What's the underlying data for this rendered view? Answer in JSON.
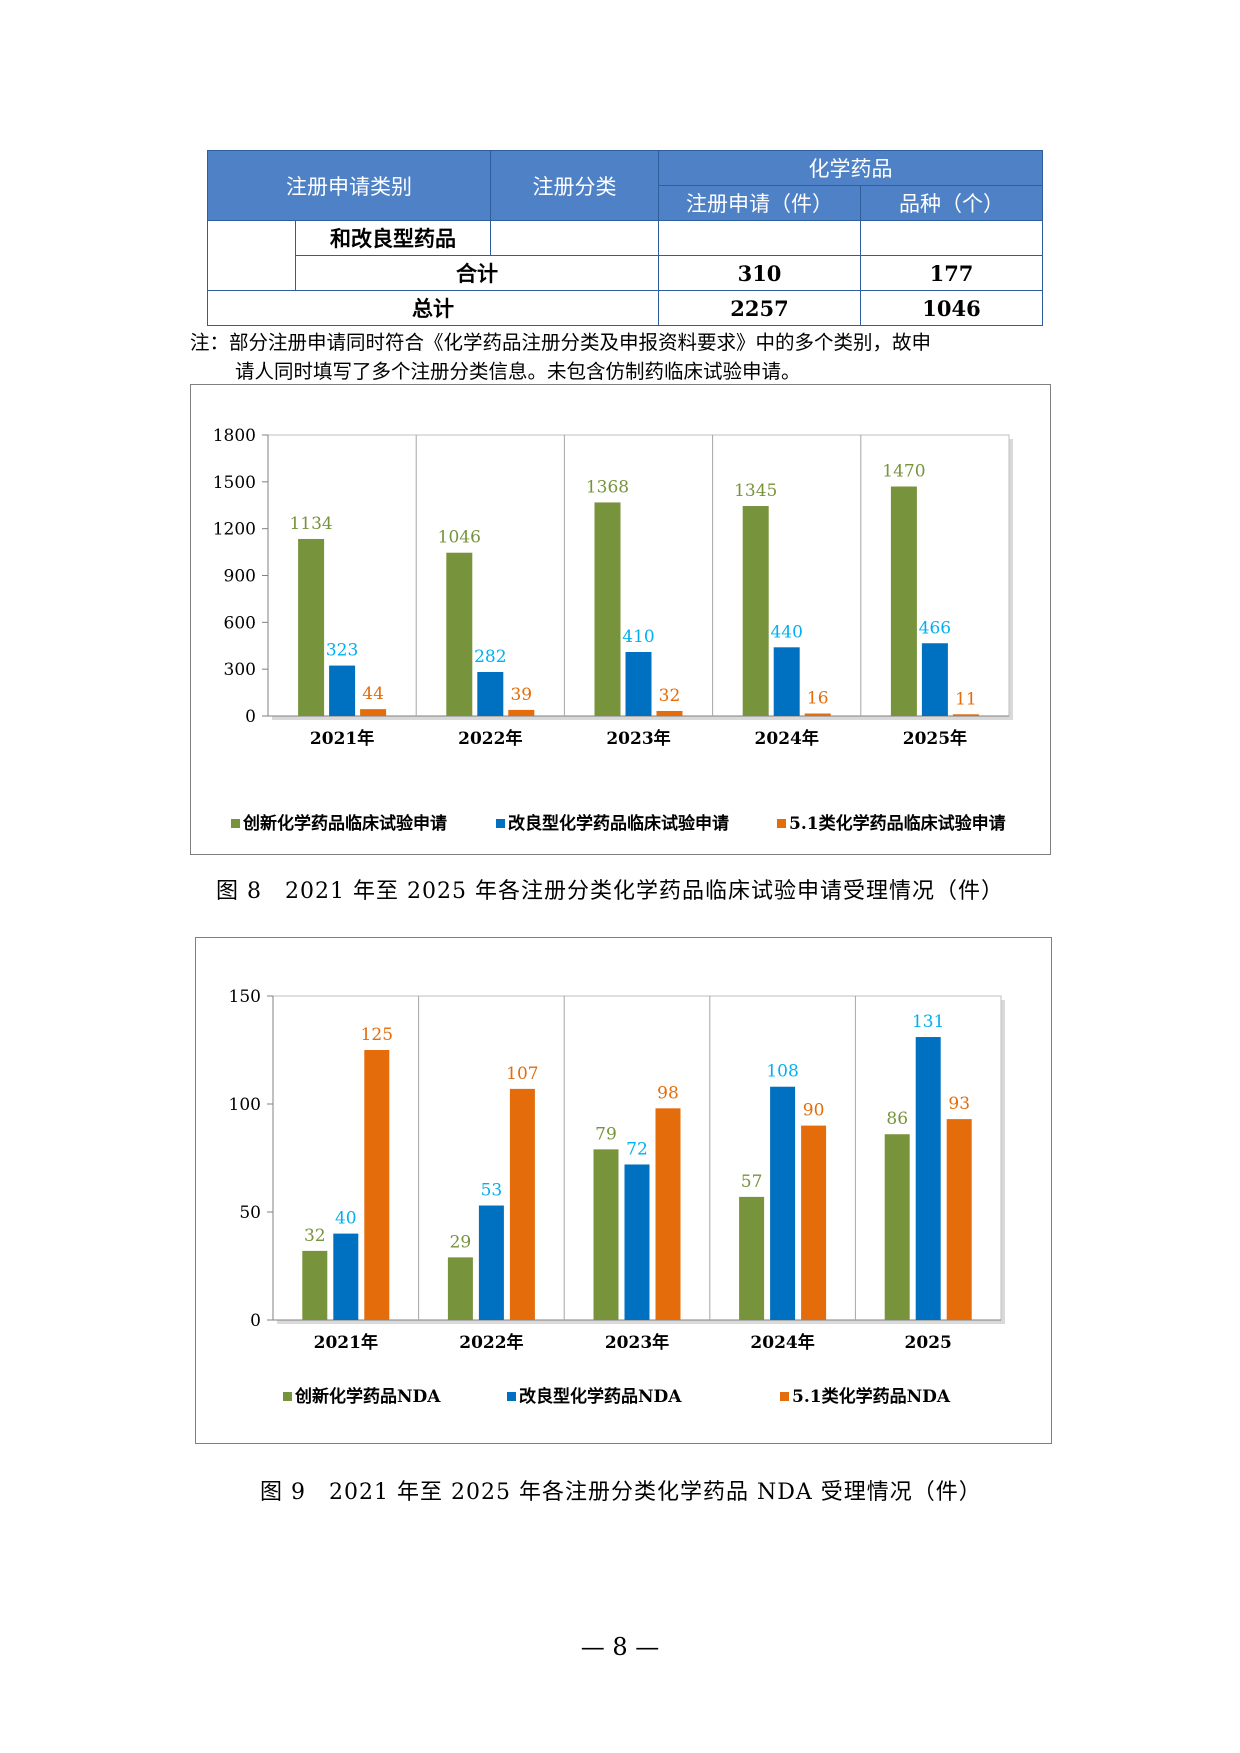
{
  "table": {
    "header": {
      "col1": "注册申请类别",
      "col2": "注册分类",
      "group": "化学药品",
      "sub1": "注册申请（件）",
      "sub2": "品种（个）"
    },
    "rows": [
      {
        "label": "和改良型药品",
        "apps": "",
        "varieties": ""
      },
      {
        "label": "合计",
        "apps": "310",
        "varieties": "177"
      },
      {
        "label": "总计",
        "apps": "2257",
        "varieties": "1046"
      }
    ]
  },
  "note": {
    "line1": "注：部分注册申请同时符合《化学药品注册分类及申报资料要求》中的多个类别，故申",
    "line2": "请人同时填写了多个注册分类信息。未包含仿制药临床试验申请。"
  },
  "chart_data": [
    {
      "type": "bar",
      "categories": [
        "2021年",
        "2022年",
        "2023年",
        "2024年",
        "2025年"
      ],
      "series": [
        {
          "name": "创新化学药品临床试验申请",
          "values": [
            1134,
            1046,
            1368,
            1345,
            1470
          ],
          "color": "#77933c"
        },
        {
          "name": "改良型化学药品临床试验申请",
          "values": [
            323,
            282,
            410,
            440,
            466
          ],
          "color": "#0070c0"
        },
        {
          "name": "5.1类化学药品临床试验申请",
          "values": [
            44,
            39,
            32,
            16,
            11
          ],
          "color": "#e46c0a"
        }
      ],
      "label_colors": [
        "#77933c",
        "#00b0f0",
        "#e46c0a"
      ],
      "yticks": [
        0,
        300,
        600,
        900,
        1200,
        1500,
        1800
      ],
      "ylim": [
        0,
        1800
      ],
      "grid": false,
      "legend": "bottom",
      "title": "",
      "xlabel": "",
      "ylabel": ""
    },
    {
      "type": "bar",
      "categories": [
        "2021年",
        "2022年",
        "2023年",
        "2024年",
        "2025"
      ],
      "series": [
        {
          "name": "创新化学药品NDA",
          "values": [
            32,
            29,
            79,
            57,
            86
          ],
          "color": "#77933c"
        },
        {
          "name": "改良型化学药品NDA",
          "values": [
            40,
            53,
            72,
            108,
            131
          ],
          "color": "#0070c0"
        },
        {
          "name": "5.1类化学药品NDA",
          "values": [
            125,
            107,
            98,
            90,
            93
          ],
          "color": "#e46c0a"
        }
      ],
      "label_colors": [
        "#77933c",
        "#00b0f0",
        "#e46c0a"
      ],
      "yticks": [
        0,
        50,
        100,
        150
      ],
      "ylim": [
        0,
        150
      ],
      "grid": false,
      "legend": "bottom",
      "title": "",
      "xlabel": "",
      "ylabel": ""
    }
  ],
  "captions": {
    "fig8": "图 8　2021 年至 2025 年各注册分类化学药品临床试验申请受理情况（件）",
    "fig9": "图 9　2021 年至 2025 年各注册分类化学药品 NDA 受理情况（件）"
  },
  "page_number": "— 8 —"
}
